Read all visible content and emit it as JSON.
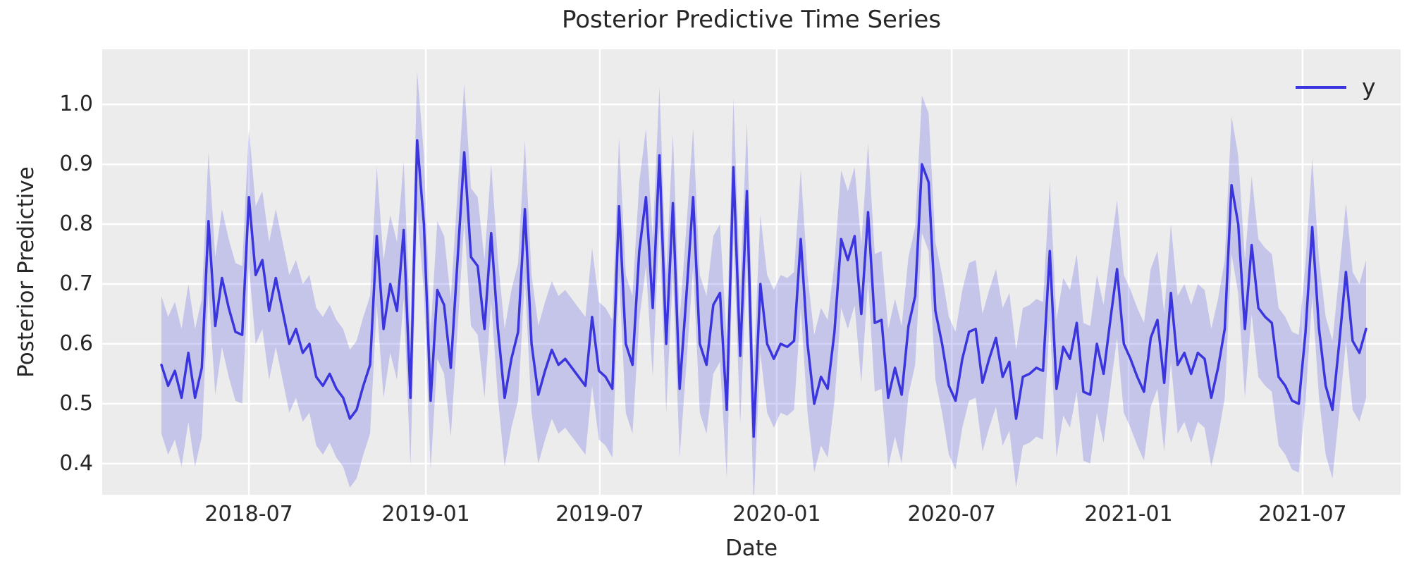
{
  "chart_data": {
    "type": "line",
    "title": "Posterior Predictive Time Series",
    "xlabel": "Date",
    "ylabel": "Posterior Predictive",
    "legend": {
      "label": "y",
      "position": "upper right"
    },
    "grid": true,
    "style": "gray-background-white-grid",
    "ylim": [
      0.348,
      1.092
    ],
    "y_ticks": [
      "0.4",
      "0.5",
      "0.6",
      "0.7",
      "0.8",
      "0.9",
      "1.0"
    ],
    "y_tick_values": [
      0.4,
      0.5,
      0.6,
      0.7,
      0.8,
      0.9,
      1.0
    ],
    "x_ticks": [
      {
        "label": "2018-07",
        "week": 13.0
      },
      {
        "label": "2019-01",
        "week": 39.29
      },
      {
        "label": "2019-07",
        "week": 65.14
      },
      {
        "label": "2020-01",
        "week": 91.43
      },
      {
        "label": "2020-07",
        "week": 117.43
      },
      {
        "label": "2021-01",
        "week": 143.71
      },
      {
        "label": "2021-07",
        "week": 169.57
      }
    ],
    "series": [
      {
        "name": "y",
        "start_date": "2018-04-01",
        "freq_days": 7,
        "n_points": 180,
        "values": [
          0.565,
          0.53,
          0.555,
          0.51,
          0.585,
          0.51,
          0.56,
          0.805,
          0.63,
          0.71,
          0.66,
          0.62,
          0.615,
          0.845,
          0.715,
          0.74,
          0.655,
          0.71,
          0.655,
          0.6,
          0.625,
          0.585,
          0.6,
          0.545,
          0.53,
          0.55,
          0.525,
          0.51,
          0.475,
          0.49,
          0.53,
          0.565,
          0.78,
          0.625,
          0.7,
          0.655,
          0.79,
          0.51,
          0.94,
          0.8,
          0.505,
          0.69,
          0.665,
          0.56,
          0.74,
          0.92,
          0.745,
          0.73,
          0.625,
          0.785,
          0.625,
          0.51,
          0.575,
          0.62,
          0.825,
          0.6,
          0.515,
          0.555,
          0.59,
          0.565,
          0.575,
          0.56,
          0.545,
          0.53,
          0.645,
          0.555,
          0.545,
          0.525,
          0.83,
          0.6,
          0.565,
          0.755,
          0.845,
          0.66,
          0.915,
          0.6,
          0.835,
          0.525,
          0.68,
          0.845,
          0.6,
          0.565,
          0.665,
          0.685,
          0.49,
          0.895,
          0.58,
          0.855,
          0.445,
          0.7,
          0.6,
          0.575,
          0.6,
          0.595,
          0.605,
          0.775,
          0.6,
          0.5,
          0.545,
          0.525,
          0.62,
          0.775,
          0.74,
          0.78,
          0.65,
          0.82,
          0.635,
          0.64,
          0.51,
          0.56,
          0.515,
          0.63,
          0.68,
          0.9,
          0.87,
          0.655,
          0.6,
          0.53,
          0.505,
          0.575,
          0.62,
          0.625,
          0.535,
          0.575,
          0.61,
          0.545,
          0.57,
          0.475,
          0.545,
          0.55,
          0.56,
          0.555,
          0.755,
          0.525,
          0.595,
          0.575,
          0.635,
          0.52,
          0.515,
          0.6,
          0.55,
          0.64,
          0.725,
          0.6,
          0.575,
          0.545,
          0.52,
          0.61,
          0.64,
          0.535,
          0.685,
          0.565,
          0.585,
          0.55,
          0.585,
          0.575,
          0.51,
          0.56,
          0.625,
          0.865,
          0.8,
          0.625,
          0.765,
          0.66,
          0.645,
          0.635,
          0.545,
          0.53,
          0.505,
          0.5,
          0.62,
          0.795,
          0.625,
          0.53,
          0.49,
          0.6,
          0.72,
          0.605,
          0.585,
          0.625
        ],
        "band": {
          "meaning": "credible interval",
          "halfwidth": 0.115
        }
      }
    ],
    "colors": {
      "line": "#3b35dd",
      "band_fill": "#3b35dd",
      "band_opacity": 0.22,
      "plot_background": "#ececec",
      "gridline": "#ffffff",
      "text": "#262626",
      "figure_background": "#ffffff"
    }
  }
}
